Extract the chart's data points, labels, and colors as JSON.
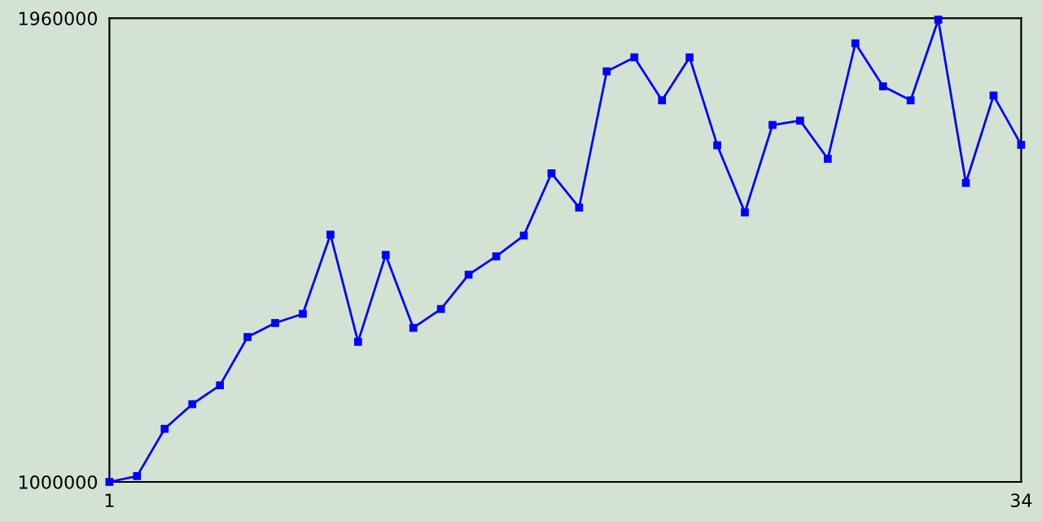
{
  "chart_data": {
    "type": "line",
    "x": [
      1,
      2,
      3,
      4,
      5,
      6,
      7,
      8,
      9,
      10,
      11,
      12,
      13,
      14,
      15,
      16,
      17,
      18,
      19,
      20,
      21,
      22,
      23,
      24,
      25,
      26,
      27,
      28,
      29,
      30,
      31,
      32,
      33,
      34
    ],
    "series": [
      {
        "color": "#0000ff",
        "values": [
          1000000,
          1012000,
          1110000,
          1161000,
          1200000,
          1300000,
          1329000,
          1348000,
          1512000,
          1290000,
          1470000,
          1319000,
          1358000,
          1429000,
          1467000,
          1510000,
          1639000,
          1568000,
          1850000,
          1879000,
          1790000,
          1879000,
          1697000,
          1558000,
          1739000,
          1748000,
          1669000,
          1908000,
          1819000,
          1790000,
          1957000,
          1619000,
          1800000,
          1698000
        ]
      }
    ],
    "xlim": [
      1,
      34
    ],
    "xticks": [
      1,
      34
    ],
    "ylim": [
      1000000,
      1960000
    ],
    "yticks": [
      1000000,
      1960000
    ],
    "marker": "square",
    "line_style": "solid",
    "grid": false,
    "legend": false
  }
}
